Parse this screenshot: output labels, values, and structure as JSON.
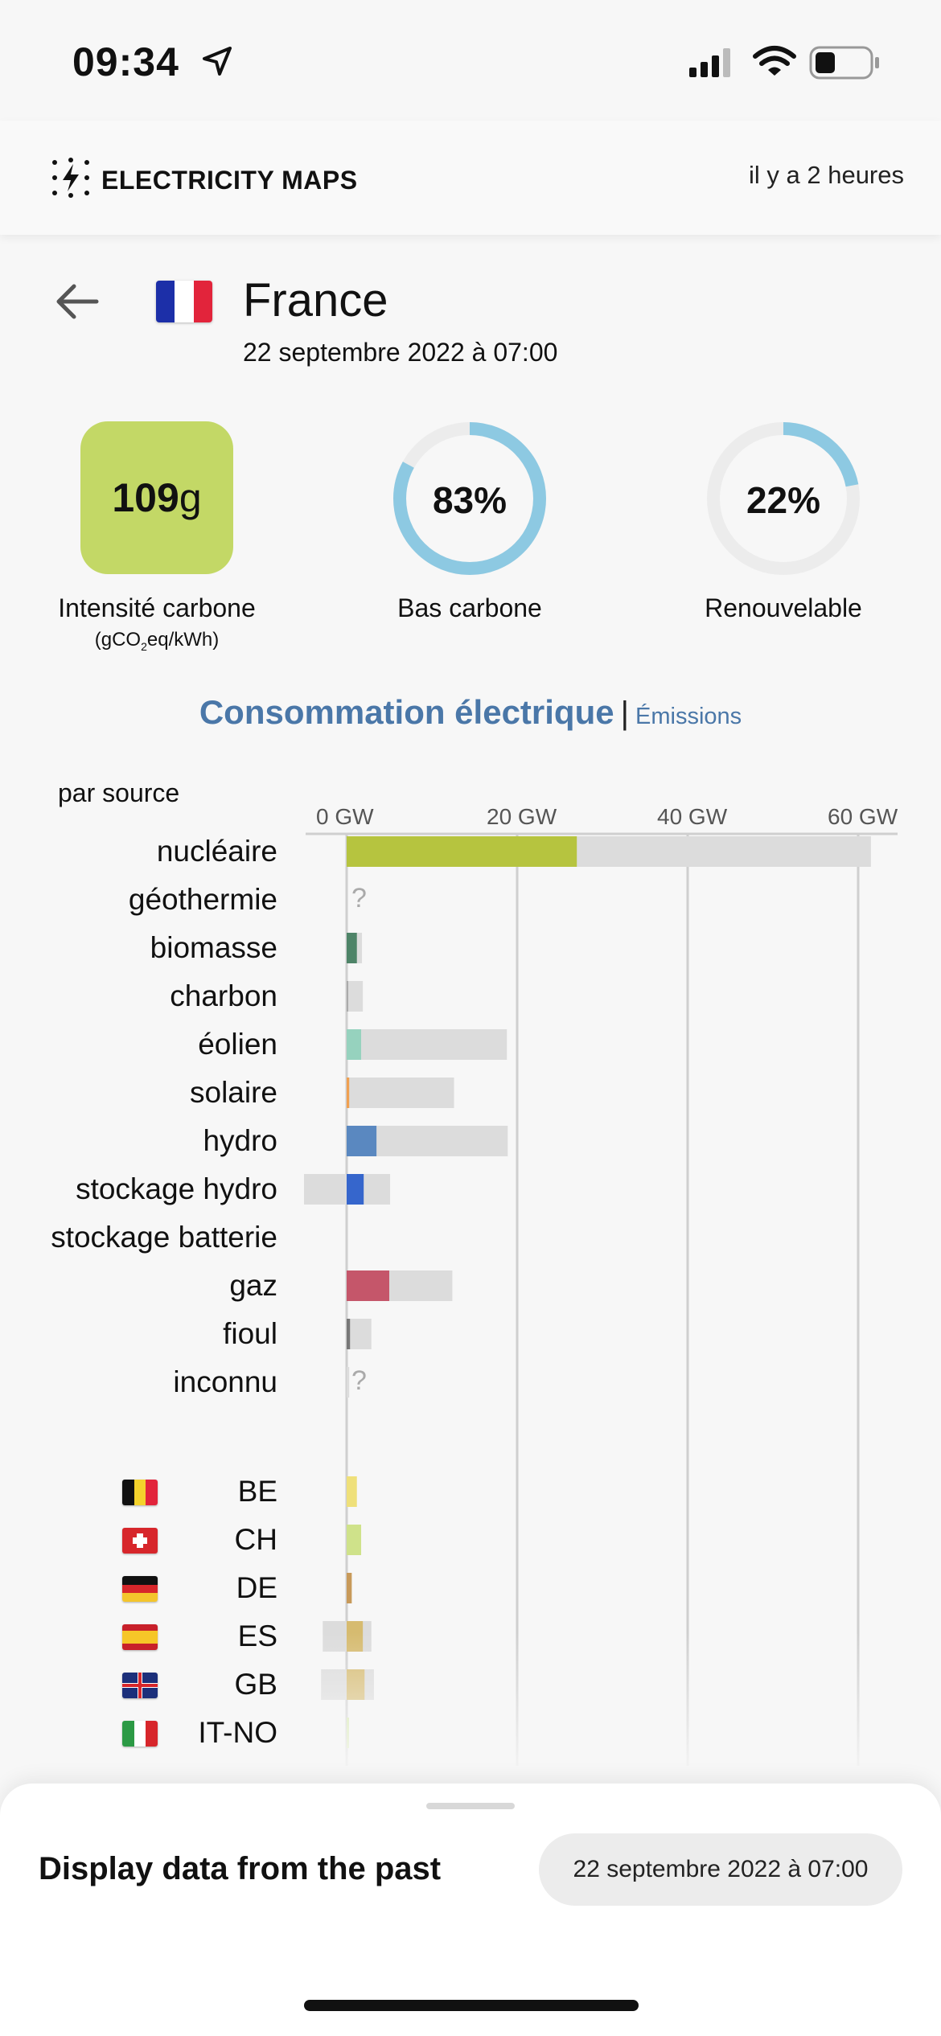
{
  "status_bar": {
    "time": "09:34"
  },
  "header": {
    "app_name": "ELECTRICITY MAPS",
    "last_updated": "il y a 2 heures"
  },
  "zone": {
    "name": "France",
    "datetime": "22 septembre 2022 à 07:00"
  },
  "metrics": {
    "carbon_intensity": {
      "value": "109",
      "unit": "g",
      "label": "Intensité carbone",
      "unit_label_prefix": "(gCO",
      "unit_label_sub": "2",
      "unit_label_suffix": "eq/kWh)",
      "color": "#c3d866"
    },
    "low_carbon": {
      "value_text": "83%",
      "fraction": 0.83,
      "label": "Bas carbone",
      "color": "#8dc9e2"
    },
    "renewable": {
      "value_text": "22%",
      "fraction": 0.22,
      "label": "Renouvelable",
      "color": "#8dc9e2"
    }
  },
  "section": {
    "title": "Consommation électrique",
    "separator": "|",
    "alt_tab": "Émissions",
    "subtitle": "par source"
  },
  "chart_data": {
    "type": "bar",
    "xlabel": "",
    "ylabel": "",
    "x_ticks": [
      "0 GW",
      "20 GW",
      "40 GW",
      "60 GW"
    ],
    "xlim": [
      -5,
      63
    ],
    "categories": [
      "nucléaire",
      "géothermie",
      "biomasse",
      "charbon",
      "éolien",
      "solaire",
      "hydro",
      "stockage hydro",
      "stockage batterie",
      "gaz",
      "fioul",
      "inconnu"
    ],
    "series": [
      {
        "values": [
          27,
          null,
          1.2,
          0.1,
          1.7,
          0.3,
          3.5,
          2.0,
          null,
          5.0,
          0.4,
          null
        ]
      }
    ],
    "capacity_min": [
      0,
      null,
      0,
      0,
      0,
      0,
      0,
      -5,
      null,
      0,
      0,
      0
    ],
    "capacity_max": [
      61.5,
      null,
      1.8,
      1.9,
      18.8,
      12.6,
      18.9,
      5.1,
      null,
      12.4,
      2.9,
      0.3
    ],
    "unknown_marker": "?",
    "colors": [
      "#b6c43f",
      null,
      "#4e8468",
      "#aaaaaa",
      "#96d2be",
      "#f0a050",
      "#5a88c0",
      "#3666cc",
      null,
      "#c5566a",
      "#777777",
      null
    ],
    "capacity_color": "#dcdcdc",
    "exchanges": [
      {
        "code": "BE",
        "value": 1.2,
        "capacity_min": 0,
        "capacity_max": 1.2,
        "color": "#efe07a"
      },
      {
        "code": "CH",
        "value": 1.7,
        "capacity_min": 0,
        "capacity_max": 1.7,
        "color": "#cfe28a"
      },
      {
        "code": "DE",
        "value": 0.6,
        "capacity_min": 0,
        "capacity_max": 0.6,
        "color": "#c89a5a"
      },
      {
        "code": "ES",
        "value": 1.9,
        "capacity_min": -2.8,
        "capacity_max": 2.9,
        "color": "#d6bb70"
      },
      {
        "code": "GB",
        "value": 2.1,
        "capacity_min": -3.0,
        "capacity_max": 3.2,
        "color": "#d6bb70"
      },
      {
        "code": "IT-NO",
        "value": 0.2,
        "capacity_min": 0,
        "capacity_max": 0.2,
        "color": "#d2e8a0"
      }
    ]
  },
  "past": {
    "title": "Display data from the past",
    "datetime": "22 septembre 2022 à 07:00"
  }
}
